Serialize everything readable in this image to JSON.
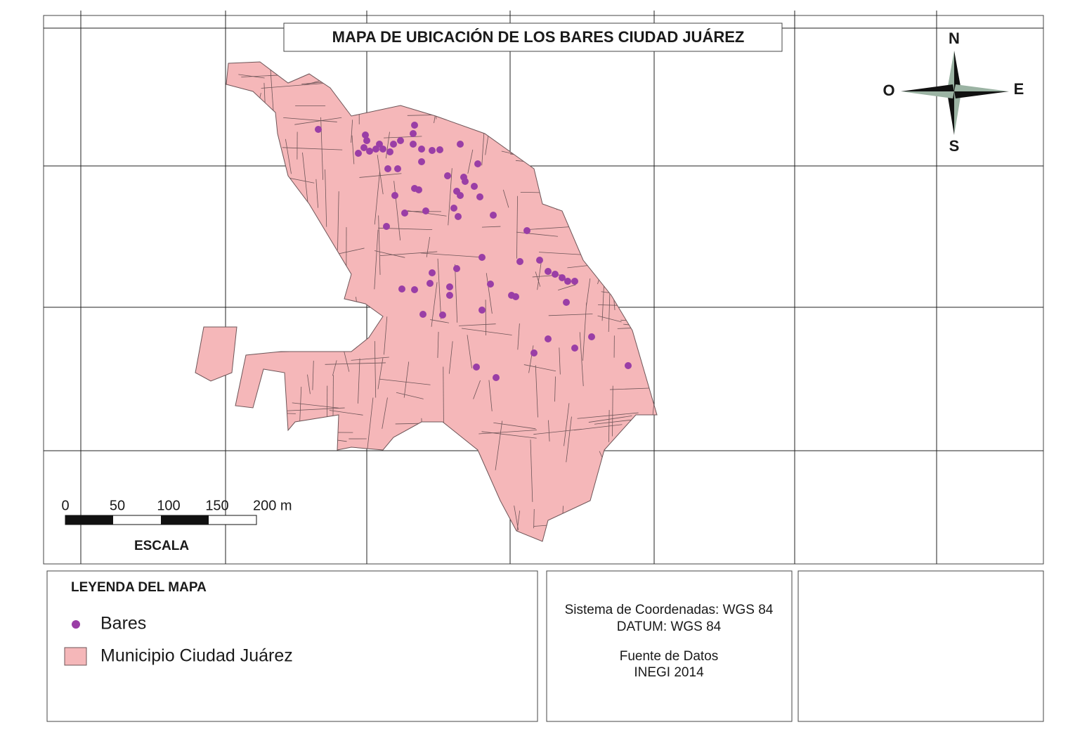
{
  "title": "MAPA DE UBICACIÓN DE LOS BARES CIUDAD JUÁREZ",
  "compass": {
    "north": "N",
    "west": "O",
    "east": "E",
    "south": "S"
  },
  "scale": {
    "labels": [
      "0",
      "50",
      "100",
      "150",
      "200 m"
    ],
    "title": "ESCALA"
  },
  "legend": {
    "title": "LEYENDA DEL MAPA",
    "items": [
      "Bares",
      "Municipio Ciudad Juárez"
    ]
  },
  "info": {
    "coordinate_system": "Sistema de Coordenadas: WGS 84",
    "datum": "DATUM: WGS 84",
    "source_title": "Fuente de Datos",
    "source": "INEGI 2014"
  }
}
